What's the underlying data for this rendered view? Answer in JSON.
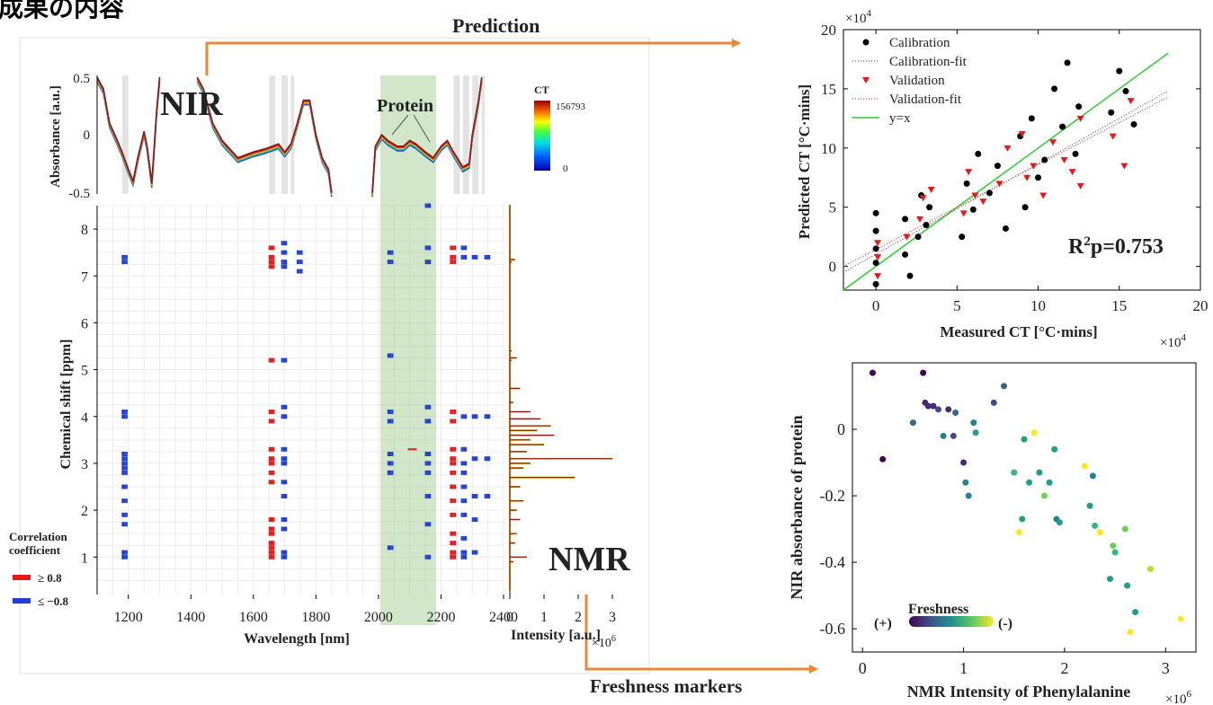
{
  "heading": "成果の内容",
  "annotations": {
    "prediction": "Prediction",
    "freshness_markers": "Freshness markers",
    "nir": "NIR",
    "nmr": "NMR",
    "protein": "Protein"
  },
  "colors": {
    "arrow": "#e8883a",
    "positive_corr": "#e31a1c",
    "negative_corr": "#1f3fd6",
    "protein_band": "#9cc98a",
    "spectrum": "#8b1a1a",
    "calibration": "#000000",
    "validation": "#e31a1c",
    "identity_line": "#2ecc2e"
  },
  "nir_panel": {
    "ylabel": "Absorbance [a.u.]",
    "yticks": [
      "0.5",
      "0",
      "-0.5"
    ],
    "colorbar_title": "CT",
    "colorbar_max": "156793",
    "colorbar_min": "0"
  },
  "corr_panel": {
    "xlabel": "Wavelength [nm]",
    "ylabel": "Chemical shift [ppm]",
    "xticks": [
      "1200",
      "1400",
      "1600",
      "1800",
      "2000",
      "2200",
      "2400"
    ],
    "yticks": [
      "8",
      "7",
      "6",
      "5",
      "4",
      "3",
      "2",
      "1"
    ],
    "legend_title_1": "Correlation",
    "legend_title_2": "coefficient",
    "legend_pos": "≥ 0.8",
    "legend_neg": "≤ −0.8"
  },
  "nmr_panel": {
    "xlabel": "Intensity [a.u.]",
    "xticks": [
      "0",
      "1",
      "2",
      "3"
    ],
    "exponent": "×10^6"
  },
  "chart_data": [
    {
      "type": "scatter",
      "xlabel": "Measured CT [°C·mins]",
      "ylabel": "Predicted CT [°C·mins]",
      "xlim": [
        -2,
        20
      ],
      "ylim": [
        -2,
        20
      ],
      "xticks": [
        "0",
        "5",
        "10",
        "15",
        "20"
      ],
      "yticks": [
        "0",
        "5",
        "10",
        "15",
        "20"
      ],
      "x_exponent": "×10^4",
      "y_exponent": "×10^4",
      "annotation": "R²p=0.753",
      "legend": [
        "Calibration",
        "Calibration-fit",
        "Validation",
        "Validation-fit",
        "y=x"
      ],
      "legend_position": "top-left",
      "series": [
        {
          "name": "Calibration",
          "x": [
            0,
            0,
            0,
            0,
            0,
            1.8,
            1.8,
            2.1,
            2.6,
            2.8,
            3.1,
            3.3,
            5.3,
            5.6,
            6.0,
            6.3,
            7.0,
            7.5,
            8.0,
            8.9,
            9.2,
            9.6,
            10.0,
            10.4,
            11.0,
            11.5,
            11.8,
            12.3,
            12.5,
            14.5,
            15.0,
            15.4,
            15.9
          ],
          "y": [
            -1.5,
            0.3,
            1.5,
            3.0,
            4.5,
            1.0,
            4.0,
            -0.8,
            2.5,
            6.0,
            3.5,
            5.0,
            2.5,
            7.0,
            4.8,
            9.5,
            6.2,
            8.5,
            3.2,
            11.0,
            5.0,
            12.5,
            7.5,
            9.0,
            15.0,
            11.8,
            17.2,
            9.5,
            13.5,
            13.0,
            16.5,
            14.8,
            12.0
          ]
        },
        {
          "name": "Validation",
          "x": [
            0,
            0,
            0,
            1.8,
            2.6,
            2.8,
            3.3,
            5.3,
            5.6,
            6.0,
            6.5,
            7.5,
            8.0,
            8.9,
            9.2,
            9.6,
            10.2,
            10.8,
            11.5,
            12.0,
            12.5,
            12.5,
            14.5,
            15.2,
            15.6
          ],
          "y": [
            0.8,
            -0.8,
            2.0,
            2.5,
            4.0,
            5.8,
            6.5,
            4.5,
            8.0,
            6.0,
            5.5,
            7.0,
            10.0,
            11.2,
            7.5,
            8.5,
            6.0,
            10.5,
            9.0,
            8.0,
            6.8,
            12.5,
            11.0,
            8.5,
            14.0
          ]
        }
      ],
      "calibration_fit": {
        "x": [
          -2,
          18
        ],
        "y": [
          -0.5,
          14.8
        ]
      },
      "validation_fit": {
        "x": [
          -2,
          18
        ],
        "y": [
          0.0,
          14.3
        ]
      },
      "identity": {
        "x": [
          -2,
          18
        ],
        "y": [
          -2,
          18
        ]
      }
    },
    {
      "type": "scatter",
      "xlabel": "NMR Intensity of Phenylalanine",
      "ylabel": "NIR absorbance of protein",
      "xlim": [
        -0.1,
        3.3
      ],
      "ylim": [
        -0.67,
        0.2
      ],
      "xticks": [
        "0",
        "1",
        "2",
        "3"
      ],
      "yticks": [
        "0",
        "-0.2",
        "-0.4",
        "-0.6"
      ],
      "x_exponent": "×10^6",
      "colorbar_label": "Freshness",
      "colorbar_left": "(+)",
      "colorbar_right": "(-)",
      "colorbar_position": "bottom-left",
      "points": [
        {
          "x": 0.1,
          "y": 0.17,
          "f": 0.0
        },
        {
          "x": 0.2,
          "y": -0.09,
          "f": 0.05
        },
        {
          "x": 0.5,
          "y": 0.02,
          "f": 0.3
        },
        {
          "x": 0.6,
          "y": 0.17,
          "f": 0.05
        },
        {
          "x": 0.62,
          "y": 0.08,
          "f": 0.1
        },
        {
          "x": 0.65,
          "y": 0.07,
          "f": 0.1
        },
        {
          "x": 0.7,
          "y": 0.07,
          "f": 0.15
        },
        {
          "x": 0.75,
          "y": 0.06,
          "f": 0.2
        },
        {
          "x": 0.8,
          "y": -0.02,
          "f": 0.4
        },
        {
          "x": 0.85,
          "y": 0.06,
          "f": 0.15
        },
        {
          "x": 0.9,
          "y": -0.02,
          "f": 0.25
        },
        {
          "x": 0.92,
          "y": 0.05,
          "f": 0.35
        },
        {
          "x": 1.0,
          "y": -0.1,
          "f": 0.1
        },
        {
          "x": 1.02,
          "y": -0.16,
          "f": 0.4
        },
        {
          "x": 1.05,
          "y": -0.2,
          "f": 0.4
        },
        {
          "x": 1.1,
          "y": 0.02,
          "f": 0.45
        },
        {
          "x": 1.12,
          "y": -0.01,
          "f": 0.5
        },
        {
          "x": 1.3,
          "y": 0.08,
          "f": 0.2
        },
        {
          "x": 1.4,
          "y": 0.13,
          "f": 0.3
        },
        {
          "x": 1.5,
          "y": -0.13,
          "f": 0.65
        },
        {
          "x": 1.55,
          "y": -0.31,
          "f": 0.95
        },
        {
          "x": 1.58,
          "y": -0.27,
          "f": 0.6
        },
        {
          "x": 1.6,
          "y": -0.03,
          "f": 0.55
        },
        {
          "x": 1.65,
          "y": -0.16,
          "f": 0.5
        },
        {
          "x": 1.7,
          "y": -0.01,
          "f": 0.98
        },
        {
          "x": 1.75,
          "y": -0.13,
          "f": 0.55
        },
        {
          "x": 1.8,
          "y": -0.2,
          "f": 0.8
        },
        {
          "x": 1.85,
          "y": -0.16,
          "f": 0.6
        },
        {
          "x": 1.9,
          "y": -0.06,
          "f": 0.5
        },
        {
          "x": 1.92,
          "y": -0.27,
          "f": 0.45
        },
        {
          "x": 1.95,
          "y": -0.28,
          "f": 0.5
        },
        {
          "x": 2.2,
          "y": -0.11,
          "f": 0.95
        },
        {
          "x": 2.25,
          "y": -0.23,
          "f": 0.6
        },
        {
          "x": 2.28,
          "y": -0.14,
          "f": 0.45
        },
        {
          "x": 2.3,
          "y": -0.29,
          "f": 0.7
        },
        {
          "x": 2.35,
          "y": -0.31,
          "f": 0.95
        },
        {
          "x": 2.45,
          "y": -0.45,
          "f": 0.55
        },
        {
          "x": 2.48,
          "y": -0.35,
          "f": 0.8
        },
        {
          "x": 2.5,
          "y": -0.37,
          "f": 0.65
        },
        {
          "x": 2.6,
          "y": -0.3,
          "f": 0.75
        },
        {
          "x": 2.62,
          "y": -0.47,
          "f": 0.55
        },
        {
          "x": 2.65,
          "y": -0.61,
          "f": 0.95
        },
        {
          "x": 2.7,
          "y": -0.55,
          "f": 0.5
        },
        {
          "x": 2.85,
          "y": -0.42,
          "f": 0.85
        },
        {
          "x": 3.15,
          "y": -0.57,
          "f": 0.98
        }
      ]
    }
  ]
}
